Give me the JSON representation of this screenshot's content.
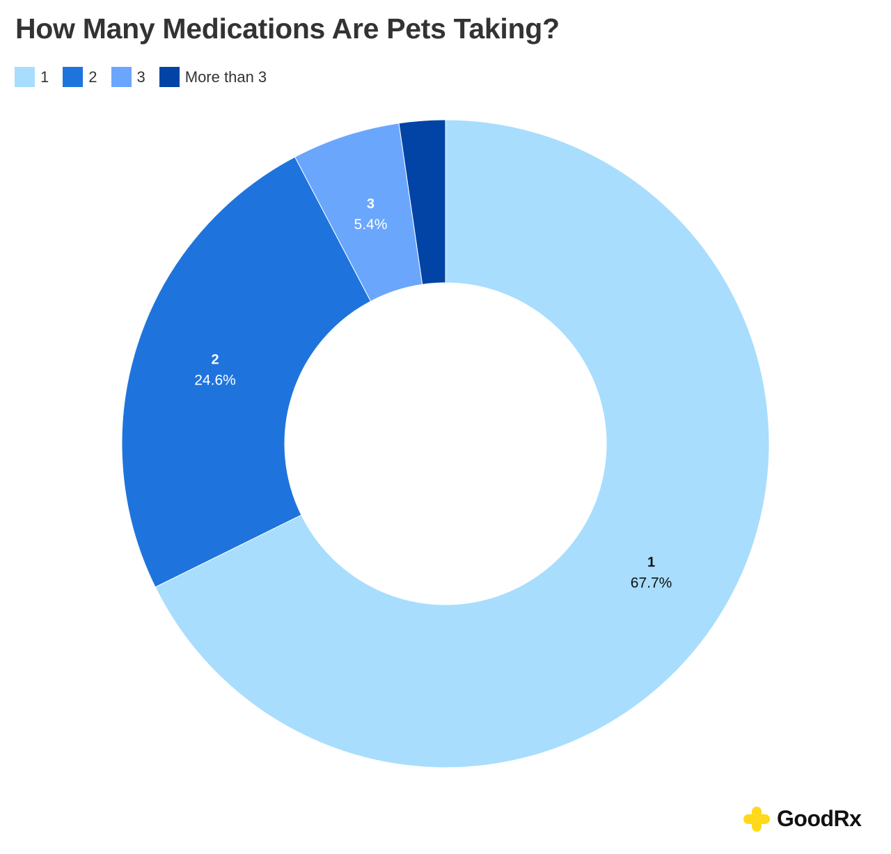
{
  "chart_data": {
    "type": "pie",
    "donut": true,
    "title": "How Many Medications Are Pets Taking?",
    "legend_position": "top-left",
    "categories": [
      "1",
      "2",
      "3",
      "More than 3"
    ],
    "values": [
      67.7,
      24.6,
      5.4,
      2.3
    ],
    "data_labels": [
      "67.7%",
      "24.6%",
      "5.4%",
      ""
    ],
    "colors": [
      "#A8DDFD",
      "#1E74DC",
      "#6BA6FD",
      "#0244A5"
    ],
    "label_colors": [
      "#111111",
      "#FFFFFF",
      "#FFFFFF",
      "#FFFFFF"
    ]
  },
  "logo": {
    "text": "GoodRx",
    "color": "#FFD91A"
  }
}
